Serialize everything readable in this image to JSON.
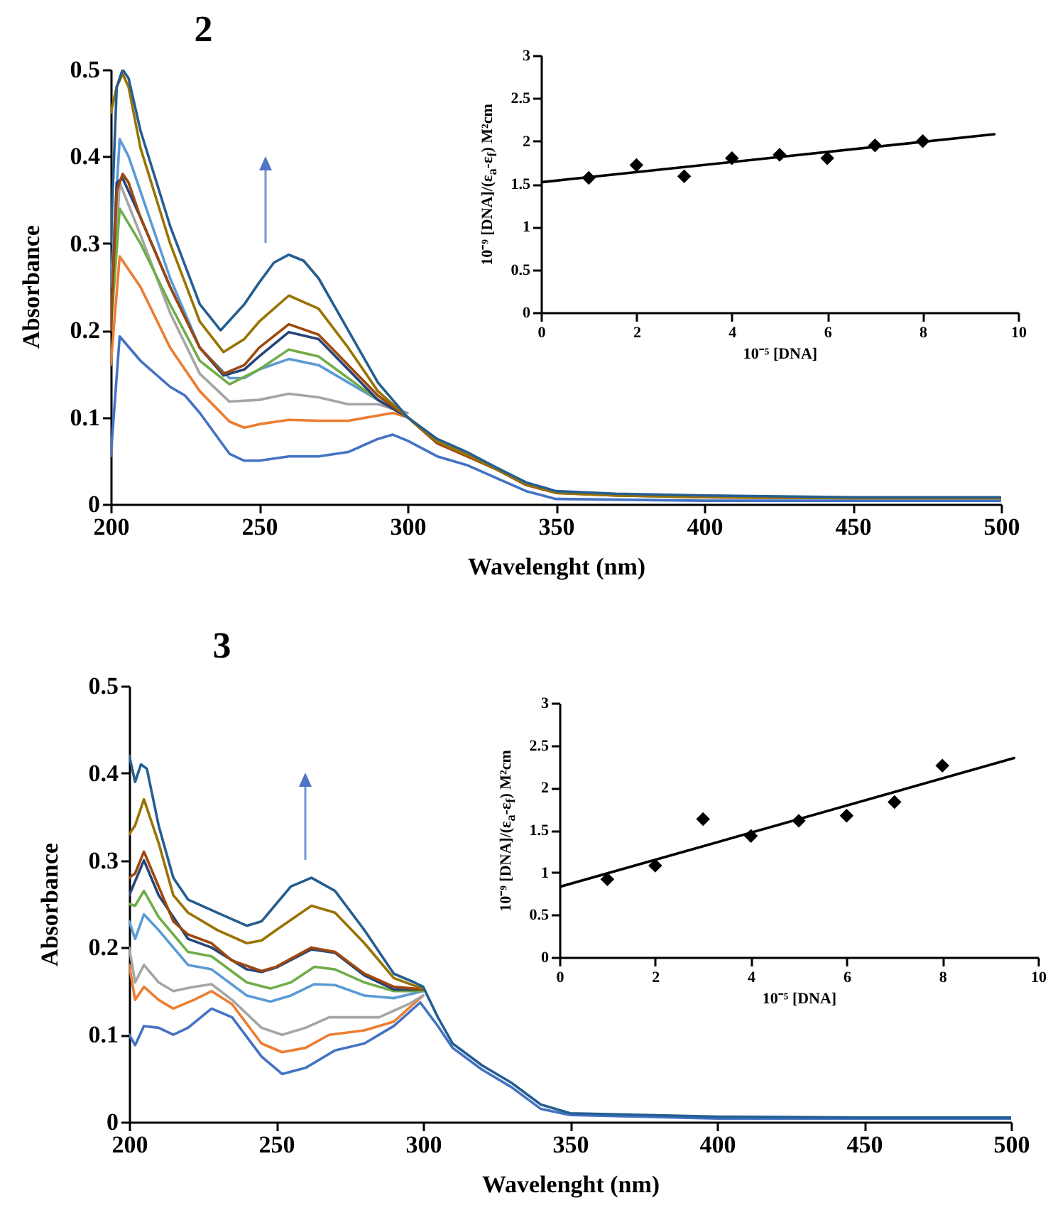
{
  "chart_data": [
    {
      "type": "line",
      "title": "2",
      "xlabel": "Wavelenght (nm)",
      "ylabel": "Absorbance",
      "xlim": [
        200,
        500
      ],
      "xticks": [
        200,
        250,
        300,
        350,
        400,
        450,
        500
      ],
      "ylim": [
        0,
        0.5
      ],
      "yticks": [
        0,
        0.1,
        0.2,
        0.3,
        0.4,
        0.5
      ],
      "series": [
        {
          "color": "#4472c4",
          "x": [
            200,
            203,
            210,
            220,
            225,
            230,
            240,
            245,
            250,
            260,
            270,
            280,
            290,
            295,
            300,
            310,
            320,
            330,
            340,
            350,
            400,
            500
          ],
          "values": [
            0.055,
            0.193,
            0.165,
            0.135,
            0.125,
            0.105,
            0.058,
            0.05,
            0.05,
            0.055,
            0.055,
            0.06,
            0.075,
            0.08,
            0.073,
            0.055,
            0.045,
            0.03,
            0.015,
            0.006,
            0.004,
            0.004
          ]
        },
        {
          "color": "#ed7d31",
          "x": [
            200,
            203,
            210,
            220,
            230,
            240,
            245,
            250,
            260,
            270,
            280,
            290,
            295,
            300
          ],
          "values": [
            0.16,
            0.285,
            0.25,
            0.18,
            0.13,
            0.095,
            0.088,
            0.092,
            0.097,
            0.096,
            0.096,
            0.102,
            0.105,
            0.1
          ]
        },
        {
          "color": "#a5a5a5",
          "x": [
            200,
            203,
            210,
            220,
            230,
            240,
            250,
            260,
            270,
            280,
            290,
            300
          ],
          "values": [
            0.2,
            0.37,
            0.31,
            0.22,
            0.15,
            0.118,
            0.12,
            0.127,
            0.123,
            0.115,
            0.115,
            0.105
          ]
        },
        {
          "color": "#5b9bd5",
          "x": [
            200,
            203,
            206,
            210,
            220,
            230,
            240,
            245,
            250,
            260,
            270,
            280,
            290,
            300
          ],
          "values": [
            0.25,
            0.42,
            0.4,
            0.36,
            0.26,
            0.18,
            0.145,
            0.145,
            0.155,
            0.167,
            0.16,
            0.14,
            0.12,
            0.1
          ]
        },
        {
          "color": "#70ad47",
          "x": [
            200,
            203,
            210,
            220,
            230,
            240,
            250,
            260,
            270,
            280,
            290,
            300
          ],
          "values": [
            0.2,
            0.34,
            0.3,
            0.23,
            0.165,
            0.138,
            0.155,
            0.178,
            0.17,
            0.145,
            0.12,
            0.1
          ]
        },
        {
          "color": "#264478",
          "x": [
            200,
            202,
            204,
            210,
            220,
            230,
            238,
            245,
            250,
            260,
            270,
            280,
            290,
            300
          ],
          "values": [
            0.2,
            0.37,
            0.375,
            0.33,
            0.25,
            0.18,
            0.148,
            0.155,
            0.17,
            0.198,
            0.19,
            0.155,
            0.12,
            0.1
          ]
        },
        {
          "color": "#9e480e",
          "x": [
            200,
            202,
            204,
            206,
            210,
            220,
            230,
            238,
            245,
            250,
            260,
            270,
            280,
            290,
            300,
            310,
            320,
            330,
            340,
            350,
            370,
            400,
            450,
            500
          ],
          "values": [
            0.2,
            0.36,
            0.38,
            0.37,
            0.33,
            0.25,
            0.18,
            0.15,
            0.16,
            0.18,
            0.207,
            0.195,
            0.16,
            0.125,
            0.1,
            0.07,
            0.055,
            0.04,
            0.022,
            0.013,
            0.01,
            0.008,
            0.007,
            0.007
          ]
        },
        {
          "color": "#997300",
          "x": [
            200,
            202,
            204,
            206,
            210,
            220,
            230,
            238,
            245,
            250,
            260,
            270,
            280,
            290,
            300,
            310,
            320,
            330,
            340,
            350,
            370,
            400,
            450,
            500
          ],
          "values": [
            0.45,
            0.48,
            0.495,
            0.48,
            0.41,
            0.3,
            0.21,
            0.175,
            0.19,
            0.21,
            0.24,
            0.225,
            0.18,
            0.13,
            0.1,
            0.072,
            0.057,
            0.04,
            0.023,
            0.013,
            0.01,
            0.008,
            0.007,
            0.007
          ]
        },
        {
          "color": "#255e91",
          "x": [
            200,
            202,
            204,
            206,
            210,
            220,
            230,
            237,
            245,
            250,
            255,
            260,
            265,
            270,
            280,
            290,
            300,
            310,
            320,
            330,
            340,
            350,
            370,
            400,
            450,
            500
          ],
          "values": [
            0.3,
            0.48,
            0.5,
            0.49,
            0.43,
            0.32,
            0.23,
            0.2,
            0.23,
            0.255,
            0.278,
            0.287,
            0.28,
            0.26,
            0.2,
            0.14,
            0.1,
            0.075,
            0.06,
            0.042,
            0.025,
            0.015,
            0.012,
            0.01,
            0.008,
            0.008
          ]
        }
      ]
    },
    {
      "type": "scatter",
      "xlabel": "10⁻⁵ [DNA]",
      "ylabel": "10⁻⁹ [DNA]/(ε$_{a}$-ε$_{f}$) M²cm",
      "xlim": [
        0,
        10
      ],
      "xticks": [
        0,
        2,
        4,
        6,
        8,
        10
      ],
      "ylim": [
        0,
        3
      ],
      "yticks": [
        0,
        0.5,
        1,
        1.5,
        2,
        2.5,
        3
      ],
      "series": [
        {
          "color": "#000000",
          "marker": "diamond",
          "x": [
            1,
            2,
            3,
            4,
            5,
            6,
            7,
            8
          ],
          "values": [
            1.57,
            1.72,
            1.59,
            1.8,
            1.84,
            1.8,
            1.95,
            2.0
          ]
        },
        {
          "type": "line",
          "color": "#000000",
          "x": [
            0,
            9.5
          ],
          "values": [
            1.52,
            2.08
          ]
        }
      ]
    },
    {
      "type": "line",
      "title": "3",
      "xlabel": "Wavelenght (nm)",
      "ylabel": "Absorbance",
      "xlim": [
        200,
        500
      ],
      "xticks": [
        200,
        250,
        300,
        350,
        400,
        450,
        500
      ],
      "ylim": [
        0,
        0.5
      ],
      "yticks": [
        0,
        0.1,
        0.2,
        0.3,
        0.4,
        0.5
      ],
      "series": [
        {
          "color": "#4472c4",
          "x": [
            200,
            202,
            205,
            210,
            215,
            220,
            228,
            235,
            245,
            252,
            260,
            270,
            280,
            290,
            299,
            305,
            310,
            320,
            330,
            340,
            350,
            400,
            500
          ],
          "values": [
            0.1,
            0.088,
            0.11,
            0.108,
            0.1,
            0.108,
            0.13,
            0.12,
            0.075,
            0.055,
            0.062,
            0.082,
            0.09,
            0.11,
            0.137,
            0.11,
            0.085,
            0.06,
            0.04,
            0.015,
            0.008,
            0.004,
            0.004
          ]
        },
        {
          "color": "#ed7d31",
          "x": [
            200,
            202,
            205,
            210,
            215,
            222,
            228,
            235,
            245,
            252,
            260,
            268,
            280,
            290,
            300
          ],
          "values": [
            0.18,
            0.14,
            0.155,
            0.14,
            0.13,
            0.14,
            0.15,
            0.135,
            0.09,
            0.08,
            0.085,
            0.1,
            0.105,
            0.115,
            0.145
          ]
        },
        {
          "color": "#a5a5a5",
          "x": [
            200,
            202,
            205,
            210,
            215,
            222,
            228,
            235,
            245,
            252,
            260,
            268,
            275,
            285,
            295,
            300
          ],
          "values": [
            0.2,
            0.16,
            0.18,
            0.16,
            0.15,
            0.155,
            0.158,
            0.14,
            0.108,
            0.1,
            0.108,
            0.12,
            0.12,
            0.12,
            0.135,
            0.145
          ]
        },
        {
          "color": "#5b9bd5",
          "x": [
            200,
            202,
            205,
            210,
            220,
            228,
            240,
            248,
            255,
            263,
            270,
            280,
            290,
            300
          ],
          "values": [
            0.23,
            0.21,
            0.238,
            0.22,
            0.18,
            0.175,
            0.145,
            0.138,
            0.145,
            0.158,
            0.157,
            0.145,
            0.142,
            0.15
          ]
        },
        {
          "color": "#70ad47",
          "x": [
            200,
            202,
            205,
            210,
            220,
            228,
            240,
            248,
            255,
            263,
            270,
            280,
            290,
            300
          ],
          "values": [
            0.25,
            0.248,
            0.265,
            0.235,
            0.195,
            0.19,
            0.16,
            0.153,
            0.16,
            0.178,
            0.175,
            0.16,
            0.15,
            0.15
          ]
        },
        {
          "color": "#264478",
          "x": [
            200,
            205,
            210,
            220,
            228,
            240,
            245,
            250,
            262,
            270,
            280,
            290,
            300
          ],
          "values": [
            0.26,
            0.3,
            0.26,
            0.21,
            0.2,
            0.175,
            0.172,
            0.177,
            0.198,
            0.194,
            0.168,
            0.152,
            0.152
          ]
        },
        {
          "color": "#9e480e",
          "x": [
            200,
            202,
            205,
            210,
            215,
            220,
            228,
            235,
            245,
            250,
            262,
            270,
            280,
            290,
            300
          ],
          "values": [
            0.28,
            0.285,
            0.31,
            0.27,
            0.23,
            0.215,
            0.205,
            0.185,
            0.173,
            0.178,
            0.2,
            0.195,
            0.17,
            0.155,
            0.152
          ]
        },
        {
          "color": "#997300",
          "x": [
            200,
            202,
            205,
            210,
            215,
            220,
            230,
            240,
            245,
            250,
            262,
            270,
            280,
            290,
            298,
            300
          ],
          "values": [
            0.33,
            0.34,
            0.37,
            0.32,
            0.26,
            0.24,
            0.22,
            0.205,
            0.208,
            0.22,
            0.248,
            0.24,
            0.205,
            0.165,
            0.155,
            0.153
          ]
        },
        {
          "color": "#255e91",
          "x": [
            200,
            202,
            204,
            206,
            210,
            215,
            220,
            230,
            240,
            245,
            250,
            255,
            262,
            270,
            280,
            290,
            297,
            300,
            305,
            310,
            320,
            330,
            340,
            350,
            400,
            450,
            500
          ],
          "values": [
            0.42,
            0.39,
            0.41,
            0.405,
            0.34,
            0.28,
            0.255,
            0.24,
            0.225,
            0.23,
            0.25,
            0.27,
            0.28,
            0.265,
            0.22,
            0.17,
            0.16,
            0.155,
            0.12,
            0.09,
            0.065,
            0.045,
            0.02,
            0.01,
            0.006,
            0.005,
            0.005
          ]
        }
      ]
    },
    {
      "type": "scatter",
      "xlabel": "10⁻⁵ [DNA]",
      "ylabel": "10⁻⁹ [DNA]/(ε$_{a}$-ε$_{f}$) M²cm",
      "xlim": [
        0,
        10
      ],
      "xticks": [
        0,
        2,
        4,
        6,
        8,
        10
      ],
      "ylim": [
        0,
        3
      ],
      "yticks": [
        0,
        0.5,
        1,
        1.5,
        2,
        2.5,
        3
      ],
      "series": [
        {
          "color": "#000000",
          "marker": "diamond",
          "x": [
            1,
            2,
            3,
            4,
            5,
            6,
            7,
            8
          ],
          "values": [
            0.92,
            1.08,
            1.63,
            1.43,
            1.61,
            1.67,
            1.83,
            2.26
          ]
        },
        {
          "type": "line",
          "color": "#000000",
          "x": [
            0,
            9.5
          ],
          "values": [
            0.83,
            2.35
          ]
        }
      ]
    }
  ]
}
